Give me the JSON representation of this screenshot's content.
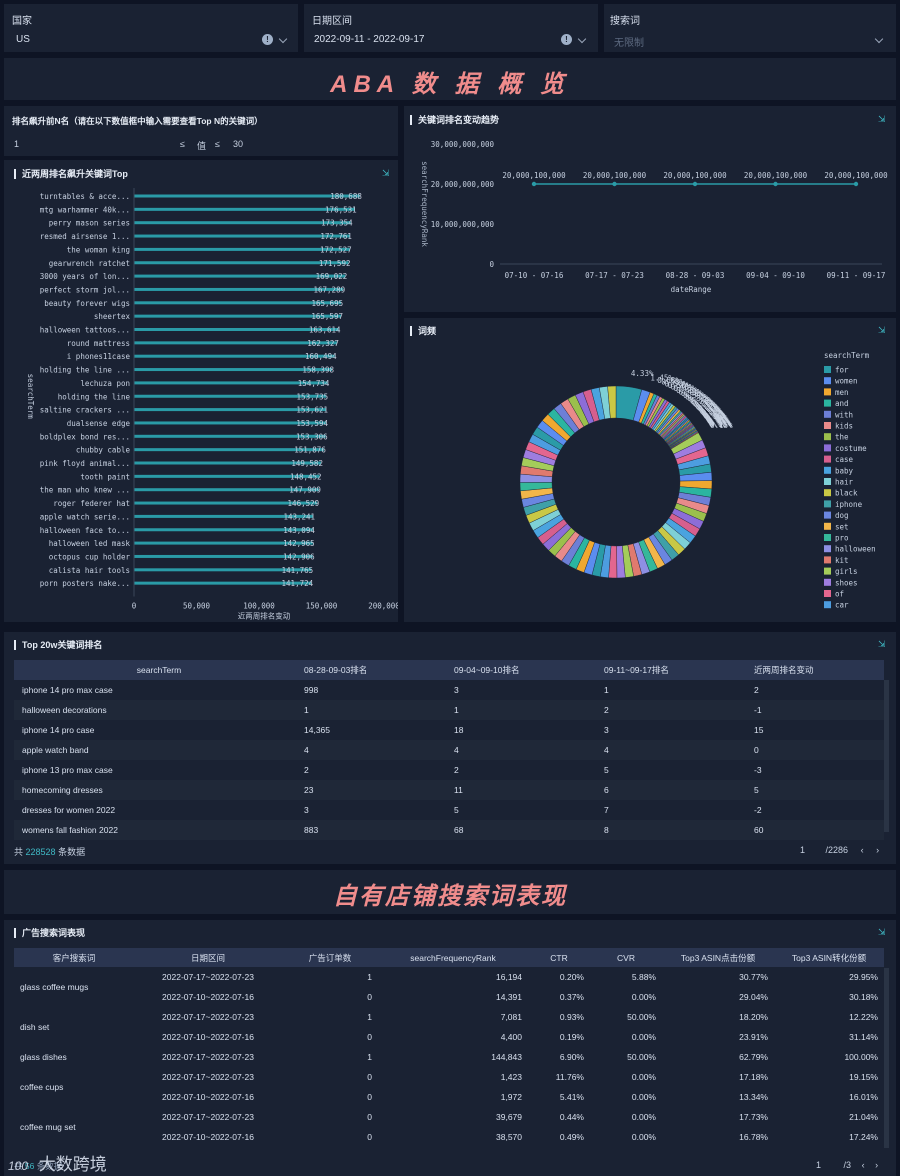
{
  "filters": {
    "country_label": "国家",
    "country_value": "US",
    "date_label": "日期区间",
    "date_value": "2022-09-11 - 2022-09-17",
    "search_label": "搜索词",
    "search_placeholder": "无限制"
  },
  "section1_title": "ABA 数 据 概 览",
  "topn": {
    "title": "排名飙升前N名（请在以下数值框中输入需要查看Top N的关键词）",
    "min_value": "1",
    "op1": "≤",
    "mid_label": "值",
    "op2": "≤",
    "max_value": "30"
  },
  "bar_panel_title": "近两周排名飙升关键词Top",
  "line_panel_title": "关键词排名变动趋势",
  "pie_panel_title": "词频",
  "table1_title": "Top 20w关键词排名",
  "section2_title": "自有店铺搜索词表现",
  "table2_title": "广告搜索词表现",
  "icons": {
    "download": "download-icon",
    "info": "info-icon",
    "chevron": "chevron-down-icon",
    "prev": "chevron-left-icon",
    "next": "chevron-right-icon"
  },
  "colors": {
    "accent": "#2a9ba7",
    "title_pink": "#f08c8c",
    "panel_bg": "#1a2233",
    "page_bg": "#0e1424"
  },
  "chart_data": [
    {
      "type": "bar",
      "orientation": "horizontal",
      "ylabel": "searchTerm",
      "xlabel": "近两周排名变动",
      "xlim": [
        0,
        200000
      ],
      "xticks": [
        "0",
        "50,000",
        "100,000",
        "150,000",
        "200,000"
      ],
      "categories": [
        "turntables & acce...",
        "mtg warhammer 40k...",
        "perry mason series",
        "resmed airsense 1...",
        "the woman king",
        "gearwrench ratchet",
        "3000 years of lon...",
        "perfect storm jol...",
        "beauty forever wigs",
        "sheertex",
        "halloween tattoos...",
        "round mattress",
        "i phones11case",
        "holding the line ...",
        "lechuza pon",
        "holding the line",
        "saltine crackers ...",
        "dualsense edge",
        "boldplex bond res...",
        "chubby cable",
        "pink floyd animal...",
        "tooth paint",
        "the man who knew ...",
        "roger federer hat",
        "apple watch serie...",
        "halloween face to...",
        "halloween led mask",
        "octopus cup holder",
        "calista hair tools",
        "porn posters nake..."
      ],
      "values": [
        180688,
        176531,
        173354,
        172761,
        172527,
        171592,
        169022,
        167289,
        165695,
        165597,
        163614,
        162327,
        160494,
        158398,
        154734,
        153735,
        153621,
        153594,
        153306,
        151876,
        149582,
        148452,
        147909,
        146529,
        143241,
        143094,
        142965,
        142906,
        141765,
        141724
      ],
      "labels": [
        "180,688",
        "176,531",
        "173,354",
        "172,761",
        "172,527",
        "171,592",
        "169,022",
        "167,289",
        "165,695",
        "165,597",
        "163,614",
        "162,327",
        "160,494",
        "158,398",
        "154,734",
        "153,735",
        "153,621",
        "153,594",
        "153,306",
        "151,876",
        "149,582",
        "148,452",
        "147,909",
        "146,529",
        "143,241",
        "143,094",
        "142,965",
        "142,906",
        "141,765",
        "141,724"
      ]
    },
    {
      "type": "line",
      "ylabel": "searchFrequencyRank",
      "xlabel": "dateRange",
      "ylim": [
        0,
        30000000000
      ],
      "yticks": [
        "0",
        "10,000,000,000",
        "20,000,000,000",
        "30,000,000,000"
      ],
      "x": [
        "07-10 - 07-16",
        "07-17 - 07-23",
        "08-28 - 09-03",
        "09-04 - 09-10",
        "09-11 - 09-17"
      ],
      "values": [
        20000100000,
        20000100000,
        20000100000,
        20000100000,
        20000100000
      ],
      "labels": [
        "20,000,100,000",
        "20,000,100,000",
        "20,000,100,000",
        "20,000,100,000",
        "20,000,100,000"
      ]
    },
    {
      "type": "pie",
      "style": "donut",
      "legend_title": "searchTerm",
      "legend_position": "right",
      "legend": [
        {
          "name": "for",
          "color": "#2a9ba7"
        },
        {
          "name": "women",
          "color": "#5b8def"
        },
        {
          "name": "men",
          "color": "#f0a830"
        },
        {
          "name": "and",
          "color": "#2bb5a0"
        },
        {
          "name": "with",
          "color": "#6d7fd6"
        },
        {
          "name": "kids",
          "color": "#e88a8a"
        },
        {
          "name": "the",
          "color": "#9bbf4c"
        },
        {
          "name": "costume",
          "color": "#8c6dd8"
        },
        {
          "name": "case",
          "color": "#d65f8e"
        },
        {
          "name": "baby",
          "color": "#4aa3df"
        },
        {
          "name": "hair",
          "color": "#7ed0d6"
        },
        {
          "name": "black",
          "color": "#c9c845"
        },
        {
          "name": "iphone",
          "color": "#3fa0a8"
        },
        {
          "name": "dog",
          "color": "#6a86e0"
        },
        {
          "name": "set",
          "color": "#f2b64a"
        },
        {
          "name": "pro",
          "color": "#35b89a"
        },
        {
          "name": "halloween",
          "color": "#8e8fe3"
        },
        {
          "name": "kit",
          "color": "#e07a6e"
        },
        {
          "name": "girls",
          "color": "#a4cc5a"
        },
        {
          "name": "shoes",
          "color": "#9e7de0"
        },
        {
          "name": "of",
          "color": "#e3668f"
        },
        {
          "name": "car",
          "color": "#4d9de0"
        }
      ],
      "slices": [
        4.33,
        1.45,
        0.68,
        0.58,
        0.5,
        0.5,
        0.48,
        0.46,
        0.43,
        0.43,
        0.4,
        0.39,
        0.39,
        0.37,
        0.33,
        0.26,
        0.26,
        0.25,
        0.23,
        0.22,
        0.22,
        0.22,
        0.21,
        0.21,
        0.21,
        0.21,
        0.17,
        0.17,
        0.16,
        0.16,
        0.16,
        0.16,
        0.16,
        0.15,
        0.15,
        0.15,
        0.15,
        0.15,
        0.15,
        0.15
      ],
      "slice_labels": [
        "4.33%",
        "1.45%",
        "0.68%",
        "0.58%",
        "0.50%",
        "0.50%",
        "0.48%",
        "0.46%",
        "0.43%",
        "0.43%",
        "0.40%",
        "0.39%",
        "0.39%",
        "0.37%",
        "0.33%",
        "0.26%",
        "0.26%",
        "0.25%",
        "0.23%",
        "0.22%",
        "0.22%",
        "0.22%",
        "0.21%",
        "0.21%",
        "0.21%",
        "0.21%",
        "0.17%",
        "0.17%",
        "0.16%",
        "0.16%",
        "0.16%",
        "0.16%",
        "0.16%",
        "0.15%",
        "0.15%",
        "0.15%",
        "0.15%",
        "0.15%",
        "0.15%",
        "0.15%"
      ]
    }
  ],
  "table1": {
    "headers": [
      "searchTerm",
      "08-28-09-03排名",
      "09-04~09-10排名",
      "09-11~09-17排名",
      "近两周排名变动"
    ],
    "rows": [
      [
        "iphone 14 pro max case",
        "998",
        "3",
        "1",
        "2"
      ],
      [
        "halloween decorations",
        "1",
        "1",
        "2",
        "-1"
      ],
      [
        "iphone 14 pro case",
        "14,365",
        "18",
        "3",
        "15"
      ],
      [
        "apple watch band",
        "4",
        "4",
        "4",
        "0"
      ],
      [
        "iphone 13 pro max case",
        "2",
        "2",
        "5",
        "-3"
      ],
      [
        "homecoming dresses",
        "23",
        "11",
        "6",
        "5"
      ],
      [
        "dresses for women 2022",
        "3",
        "5",
        "7",
        "-2"
      ],
      [
        "womens fall fashion 2022",
        "883",
        "68",
        "8",
        "60"
      ]
    ],
    "footer_prefix": "共",
    "footer_count": "228528",
    "footer_suffix": "条数据",
    "page": "1",
    "page_total": "/2286"
  },
  "table2": {
    "headers": [
      "客户搜索词",
      "日期区间",
      "广告订单数",
      "searchFrequencyRank",
      "CTR",
      "CVR",
      "Top3 ASIN点击份额",
      "Top3 ASIN转化份额"
    ],
    "groups": [
      {
        "term": "glass coffee mugs",
        "rows": [
          [
            "2022-07-17~2022-07-23",
            "1",
            "16,194",
            "0.20%",
            "5.88%",
            "30.77%",
            "29.95%"
          ],
          [
            "2022-07-10~2022-07-16",
            "0",
            "14,391",
            "0.37%",
            "0.00%",
            "29.04%",
            "30.18%"
          ]
        ]
      },
      {
        "term": "dish set",
        "rows": [
          [
            "2022-07-17~2022-07-23",
            "1",
            "7,081",
            "0.93%",
            "50.00%",
            "18.20%",
            "12.22%"
          ],
          [
            "2022-07-10~2022-07-16",
            "0",
            "4,400",
            "0.19%",
            "0.00%",
            "23.91%",
            "31.14%"
          ]
        ]
      },
      {
        "term": "glass dishes",
        "rows": [
          [
            "2022-07-17~2022-07-23",
            "1",
            "144,843",
            "6.90%",
            "50.00%",
            "62.79%",
            "100.00%"
          ]
        ]
      },
      {
        "term": "coffee cups",
        "rows": [
          [
            "2022-07-17~2022-07-23",
            "0",
            "1,423",
            "11.76%",
            "0.00%",
            "17.18%",
            "19.15%"
          ],
          [
            "2022-07-10~2022-07-16",
            "0",
            "1,972",
            "5.41%",
            "0.00%",
            "13.34%",
            "16.01%"
          ]
        ]
      },
      {
        "term": "coffee mug set",
        "rows": [
          [
            "2022-07-17~2022-07-23",
            "0",
            "39,679",
            "0.44%",
            "0.00%",
            "17.73%",
            "21.04%"
          ],
          [
            "2022-07-10~2022-07-16",
            "0",
            "38,570",
            "0.49%",
            "0.00%",
            "16.78%",
            "17.24%"
          ]
        ]
      }
    ],
    "footer_prefix": "共",
    "footer_count": "56",
    "footer_suffix": "条数据",
    "page": "1",
    "page_total": "/3"
  },
  "watermark": {
    "logo_text": "100",
    "brand": "大数跨境"
  }
}
